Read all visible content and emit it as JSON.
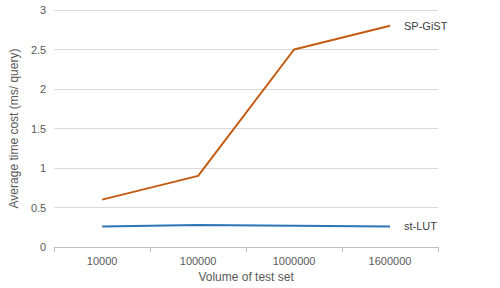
{
  "chart_data": {
    "type": "line",
    "x_label": "Volume of test set",
    "y_label": "Average time cost (ms/ query)",
    "categories": [
      "10000",
      "100000",
      "1000000",
      "1600000"
    ],
    "series": [
      {
        "name": "SP-GiST",
        "color": "#c55a11",
        "values": [
          0.6,
          0.9,
          2.5,
          2.8
        ]
      },
      {
        "name": "st-LUT",
        "color": "#2e75b6",
        "values": [
          0.26,
          0.28,
          0.27,
          0.26
        ]
      }
    ],
    "ylim": [
      0,
      3
    ],
    "yticks": [
      0,
      0.5,
      1,
      1.5,
      2,
      2.5,
      3
    ],
    "grid": true
  }
}
